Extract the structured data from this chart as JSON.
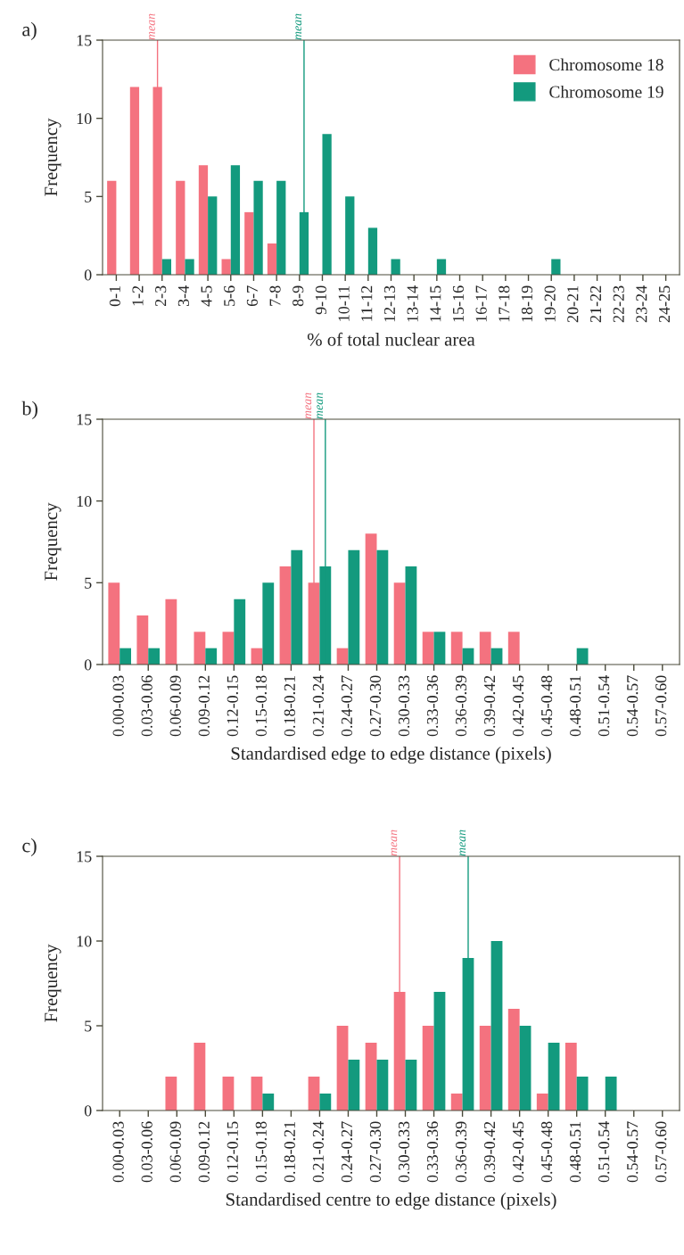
{
  "chart_data": [
    {
      "type": "bar",
      "xlabel": "% of total nuclear area",
      "ylabel": "Frequency",
      "annotations": [
        "a)"
      ],
      "categories": [
        "0-1",
        "1-2",
        "2-3",
        "3-4",
        "4-5",
        "5-6",
        "6-7",
        "7-8",
        "8-9",
        "9-10",
        "10-11",
        "11-12",
        "12-13",
        "13-14",
        "14-15",
        "15-16",
        "16-17",
        "17-18",
        "18-19",
        "19-20",
        "20-21",
        "21-22",
        "22-23",
        "23-24",
        "24-25"
      ],
      "series": [
        {
          "name": "Chromosome 18",
          "color": "#f4727f",
          "values": [
            6,
            12,
            12,
            6,
            7,
            1,
            4,
            2,
            0,
            0,
            0,
            0,
            0,
            0,
            0,
            0,
            0,
            0,
            0,
            0,
            0,
            0,
            0,
            0,
            0
          ]
        },
        {
          "name": "Chromosome 19",
          "color": "#139a7e",
          "values": [
            0,
            0,
            1,
            1,
            5,
            7,
            6,
            6,
            4,
            9,
            5,
            3,
            1,
            0,
            1,
            0,
            0,
            0,
            0,
            1,
            0,
            0,
            0,
            0,
            0
          ]
        }
      ],
      "ylim": [
        0,
        15
      ],
      "yticks": [
        0,
        5,
        10,
        15
      ],
      "legend": "top right",
      "grid": false,
      "ref_lines": [
        {
          "axis": "x",
          "value": "2-3",
          "label": "mean",
          "color": "#f4727f"
        },
        {
          "axis": "x",
          "value": "8-9",
          "label": "mean",
          "color": "#139a7e"
        }
      ]
    },
    {
      "type": "bar",
      "xlabel": "Standardised edge to edge distance (pixels)",
      "ylabel": "Frequency",
      "annotations": [
        "b)"
      ],
      "categories": [
        "0.00-0.03",
        "0.03-0.06",
        "0.06-0.09",
        "0.09-0.12",
        "0.12-0.15",
        "0.15-0.18",
        "0.18-0.21",
        "0.21-0.24",
        "0.24-0.27",
        "0.27-0.30",
        "0.30-0.33",
        "0.33-0.36",
        "0.36-0.39",
        "0.39-0.42",
        "0.42-0.45",
        "0.45-0.48",
        "0.48-0.51",
        "0.51-0.54",
        "0.54-0.57",
        "0.57-0.60"
      ],
      "series": [
        {
          "color": "#f4727f",
          "values": [
            5,
            3,
            4,
            2,
            2,
            1,
            6,
            5,
            1,
            8,
            5,
            2,
            2,
            2,
            2,
            0,
            0,
            0,
            0,
            0
          ]
        },
        {
          "color": "#139a7e",
          "values": [
            1,
            1,
            0,
            1,
            4,
            5,
            7,
            6,
            7,
            7,
            6,
            2,
            1,
            1,
            0,
            0,
            1,
            0,
            0,
            0
          ]
        }
      ],
      "ylim": [
        0,
        15
      ],
      "yticks": [
        0,
        5,
        10,
        15
      ],
      "grid": false,
      "ref_lines": [
        {
          "axis": "x",
          "value": "0.21-0.24",
          "label": "mean",
          "color": "#f4727f"
        },
        {
          "axis": "x",
          "value": "0.21-0.24",
          "label": "mean",
          "color": "#139a7e"
        }
      ]
    },
    {
      "type": "bar",
      "xlabel": "Standardised centre to edge distance (pixels)",
      "ylabel": "Frequency",
      "annotations": [
        "c)"
      ],
      "categories": [
        "0.00-0.03",
        "0.03-0.06",
        "0.06-0.09",
        "0.09-0.12",
        "0.12-0.15",
        "0.15-0.18",
        "0.18-0.21",
        "0.21-0.24",
        "0.24-0.27",
        "0.27-0.30",
        "0.30-0.33",
        "0.33-0.36",
        "0.36-0.39",
        "0.39-0.42",
        "0.42-0.45",
        "0.45-0.48",
        "0.48-0.51",
        "0.51-0.54",
        "0.54-0.57",
        "0.57-0.60"
      ],
      "series": [
        {
          "color": "#f4727f",
          "values": [
            0,
            0,
            2,
            4,
            2,
            2,
            0,
            2,
            5,
            4,
            7,
            5,
            1,
            5,
            6,
            1,
            4,
            0,
            0,
            0
          ]
        },
        {
          "color": "#139a7e",
          "values": [
            0,
            0,
            0,
            0,
            0,
            1,
            0,
            1,
            3,
            3,
            3,
            7,
            9,
            10,
            5,
            4,
            2,
            2,
            0,
            0
          ]
        }
      ],
      "ylim": [
        0,
        15
      ],
      "yticks": [
        0,
        5,
        10,
        15
      ],
      "grid": false,
      "ref_lines": [
        {
          "axis": "x",
          "value": "0.30-0.33",
          "label": "mean",
          "color": "#f4727f"
        },
        {
          "axis": "x",
          "value": "0.36-0.39",
          "label": "mean",
          "color": "#139a7e"
        }
      ]
    }
  ]
}
